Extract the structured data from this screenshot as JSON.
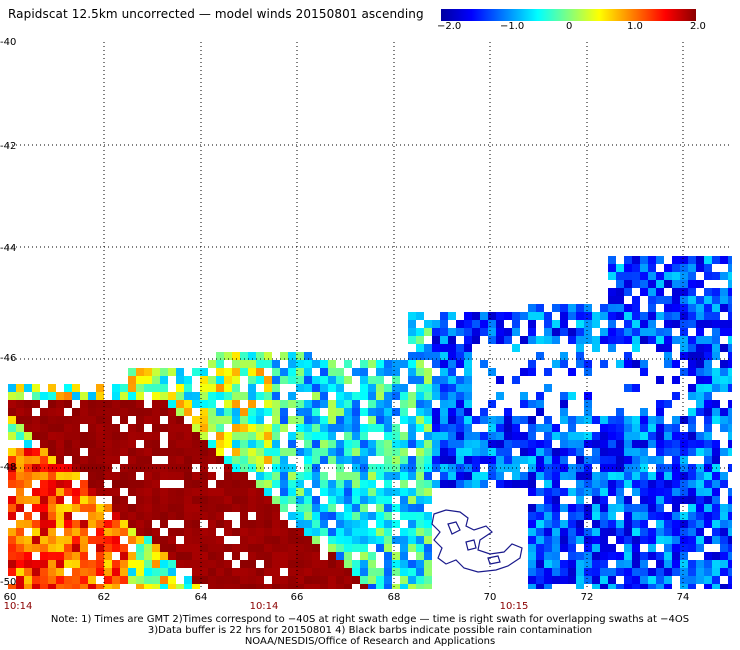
{
  "title": "Rapidscat 12.5km uncorrected — model winds 20150801 ascending",
  "colorbar": {
    "labels": [
      "−2.0",
      "−1.0",
      "0",
      "1.0",
      "2.0"
    ],
    "min": -2.0,
    "max": 2.0
  },
  "axes": {
    "y_labels": [
      "-40",
      "-42",
      "-44",
      "-46",
      "-48",
      "-50"
    ],
    "x_labels": [
      "60",
      "62",
      "64",
      "66",
      "68",
      "70",
      "72",
      "74"
    ],
    "lon_range": [
      60,
      75
    ],
    "lat_range": [
      -50,
      -40
    ]
  },
  "times": [
    "10:14",
    "10:14",
    "10:15"
  ],
  "notes": {
    "line1": "Note: 1) Times are GMT 2)Times correspond to −40S at right swath edge — time is right swath for overlapping swaths at −4OS",
    "line2": "3)Data buffer is 22 hrs for 20150801 4) Black barbs indicate possible rain contamination",
    "line3": "NOAA/NESDIS/Office of Research and Applications"
  },
  "colors": {
    "low": "#0000b4",
    "mid": "#00ffff",
    "high": "#8b0000",
    "island": "#1a1a8c"
  }
}
